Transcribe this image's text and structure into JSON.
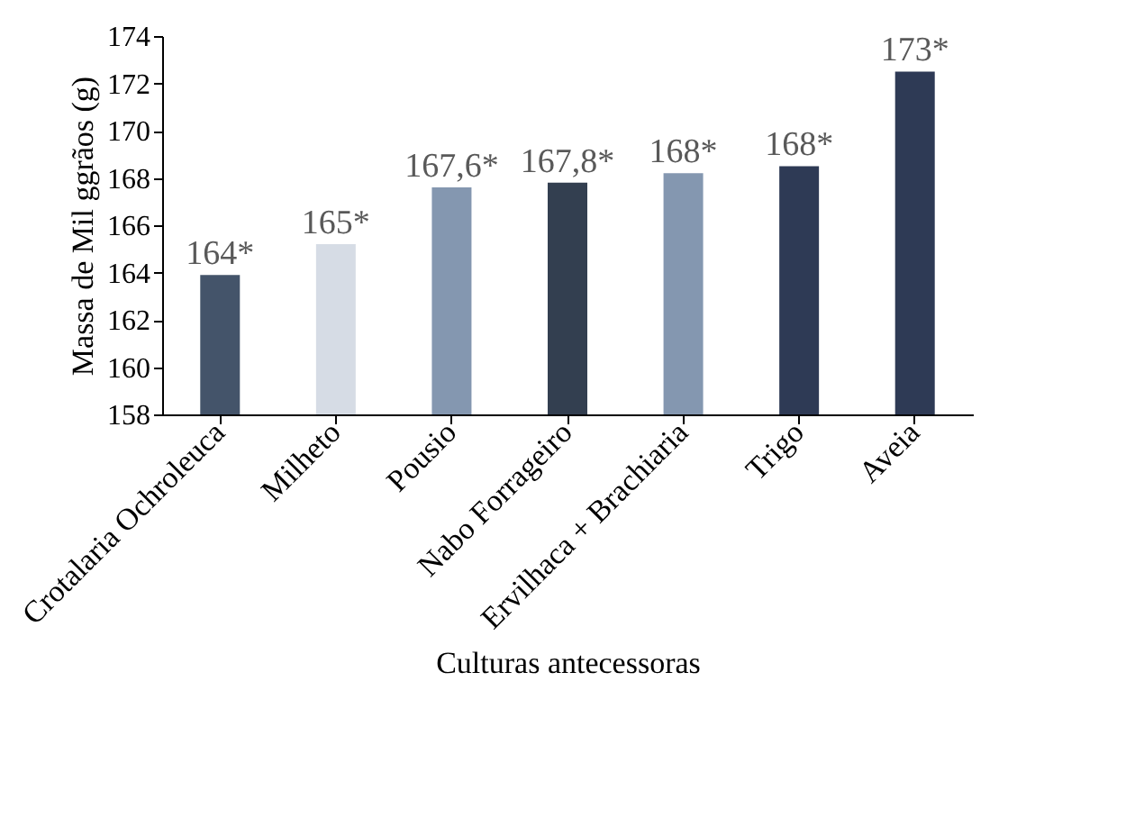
{
  "chart_data": {
    "type": "bar",
    "xlabel": "Culturas antecessoras",
    "ylabel": "Massa de Mil ggrãos (g)",
    "categories": [
      "Crotalaria  Ochroleuca",
      "Milheto",
      "Pousio",
      "Nabo Forrageiro",
      "Ervilhaca + Brachiaria",
      "Trigo",
      "Aveia"
    ],
    "values": [
      163.9,
      165.2,
      167.6,
      167.8,
      168.2,
      168.5,
      172.5
    ],
    "colors": [
      "#44546a",
      "#d6dce5",
      "#8497b0",
      "#333f50",
      "#8497b0",
      "#2e3a55",
      "#2e3a55"
    ],
    "value_labels": [
      "164*",
      "165*",
      "167,6*",
      "167,8*",
      "168*",
      "168*",
      "173*"
    ],
    "ylim": [
      158,
      174
    ],
    "yticks": [
      158,
      160,
      162,
      164,
      166,
      168,
      170,
      172,
      174
    ],
    "grid": false
  }
}
